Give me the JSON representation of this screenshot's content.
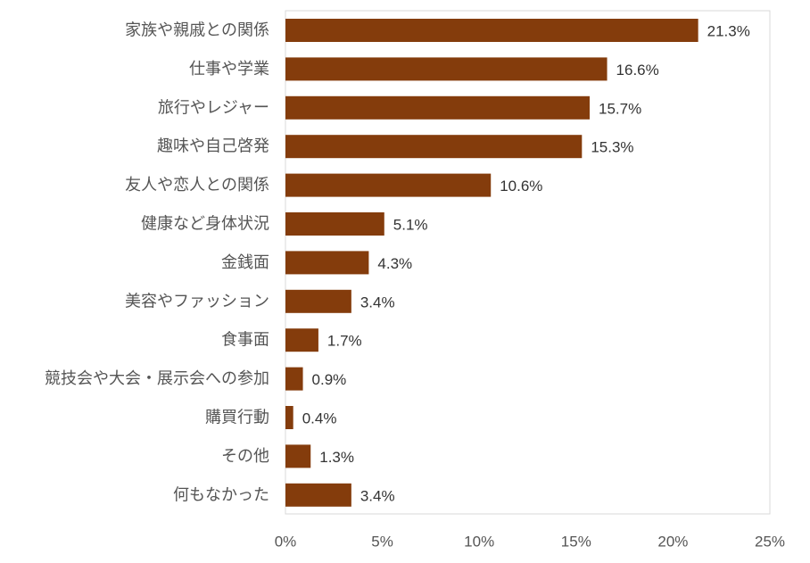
{
  "chart_data": {
    "type": "bar",
    "orientation": "horizontal",
    "categories": [
      "家族や親戚との関係",
      "仕事や学業",
      "旅行やレジャー",
      "趣味や自己啓発",
      "友人や恋人との関係",
      "健康など身体状況",
      "金銭面",
      "美容やファッション",
      "食事面",
      "競技会や大会・展示会への参加",
      "購買行動",
      "その他",
      "何もなかった"
    ],
    "values": [
      21.3,
      16.6,
      15.7,
      15.3,
      10.6,
      5.1,
      4.3,
      3.4,
      1.7,
      0.9,
      0.4,
      1.3,
      3.4
    ],
    "value_labels": [
      "21.3%",
      "16.6%",
      "15.7%",
      "15.3%",
      "10.6%",
      "5.1%",
      "4.3%",
      "3.4%",
      "1.7%",
      "0.9%",
      "0.4%",
      "1.3%",
      "3.4%"
    ],
    "xlim": [
      0,
      25
    ],
    "x_ticks": [
      0,
      5,
      10,
      15,
      20,
      25
    ],
    "x_tick_labels": [
      "0%",
      "5%",
      "10%",
      "15%",
      "20%",
      "25%"
    ],
    "title": "",
    "xlabel": "",
    "ylabel": "",
    "grid": false,
    "legend": "none",
    "bar_color": "#843c0c",
    "frame_color": "#d9d9d9"
  }
}
